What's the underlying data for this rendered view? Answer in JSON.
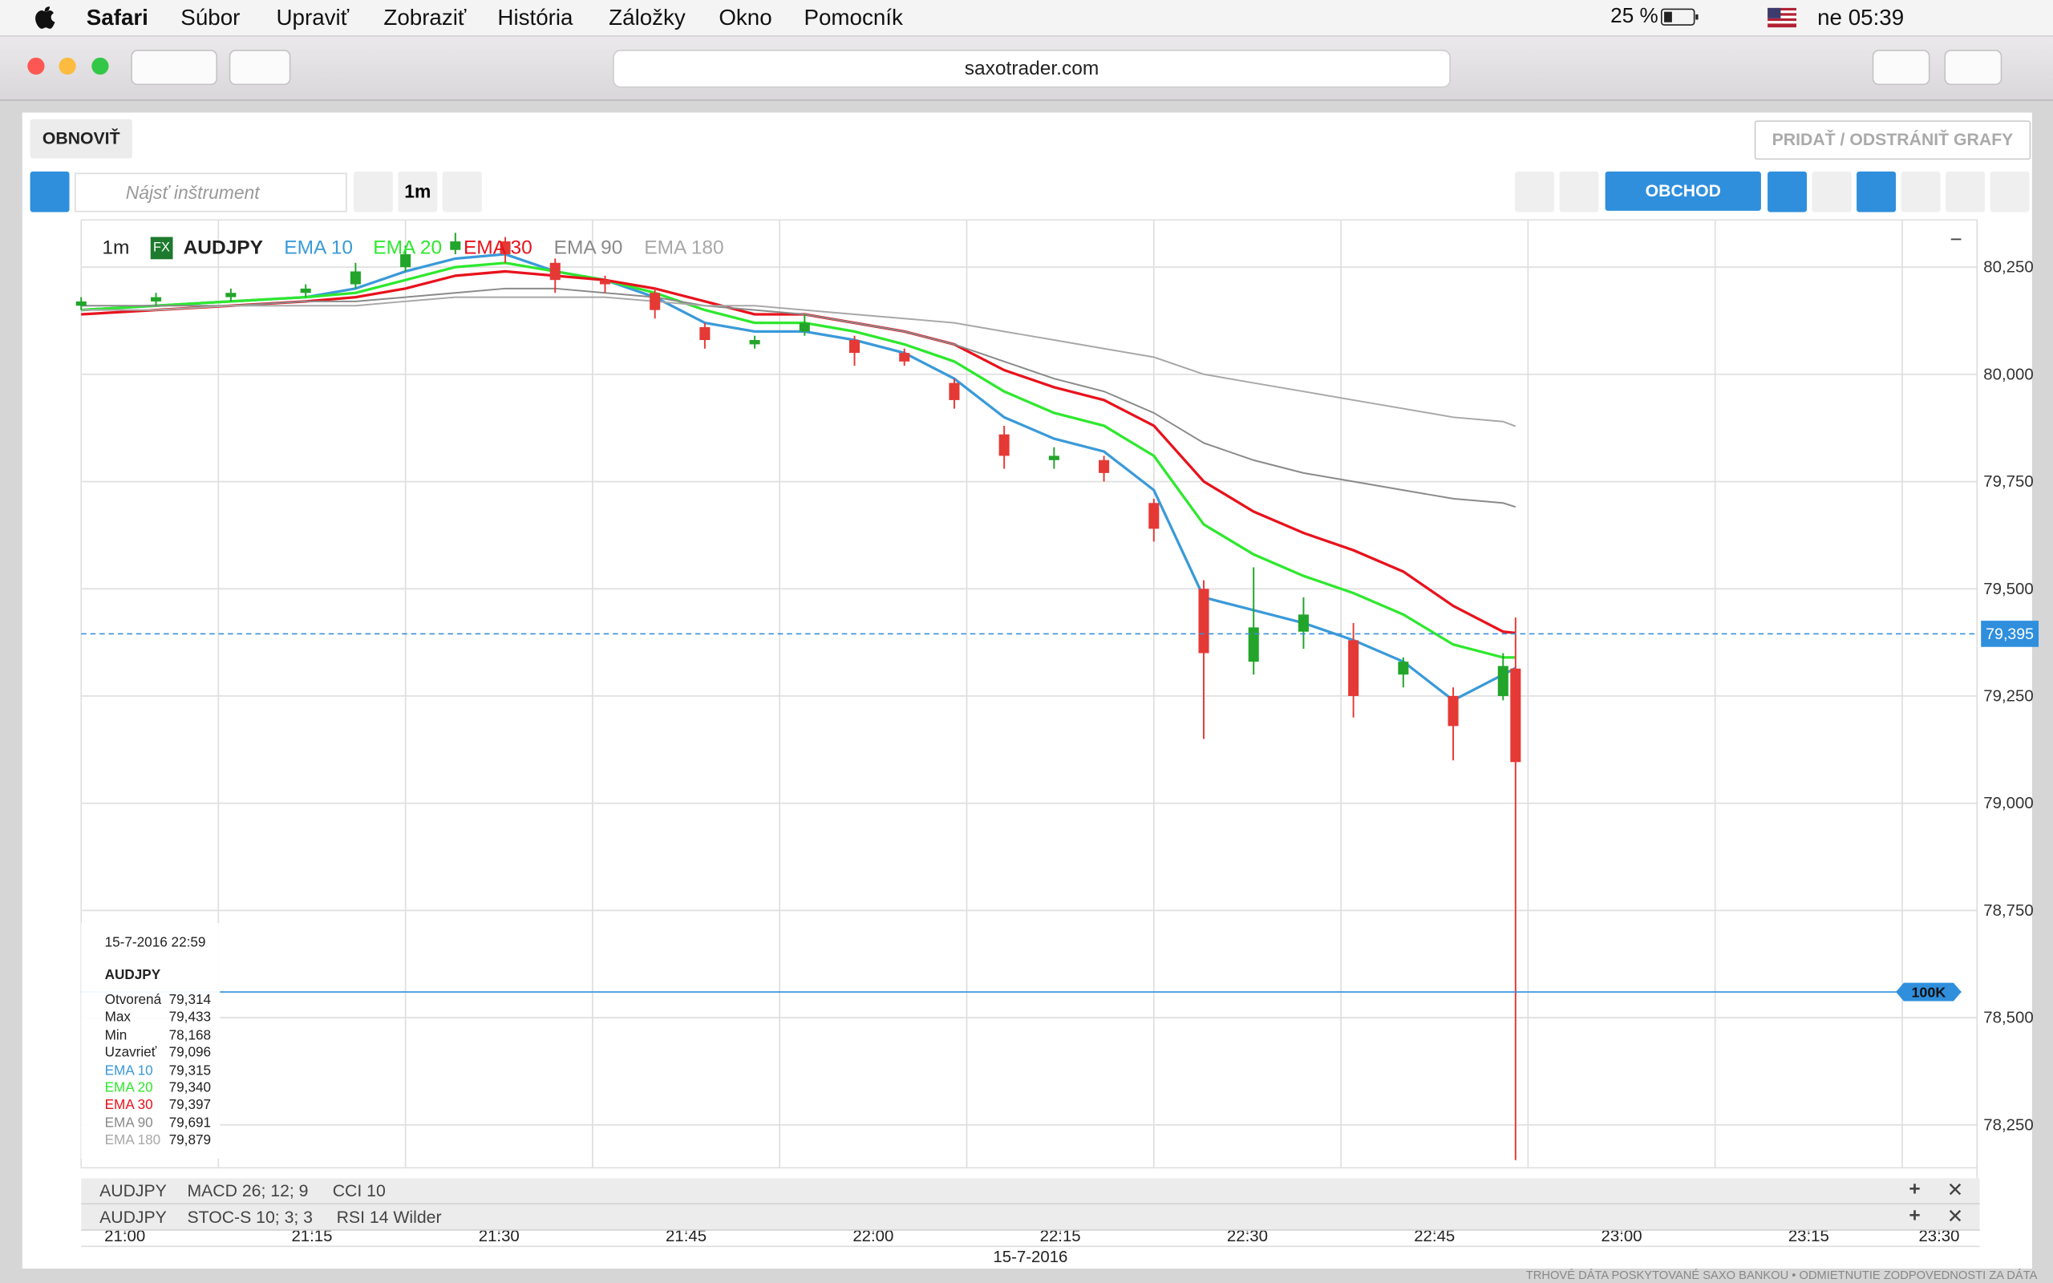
{
  "menubar": {
    "app": "Safari",
    "items": [
      "Súbor",
      "Upraviť",
      "Zobraziť",
      "História",
      "Záložky",
      "Okno",
      "Pomocník"
    ],
    "battery": "25 %",
    "clock": "ne 05:39"
  },
  "browser": {
    "url": "saxotrader.com"
  },
  "toolbar": {
    "refresh": "OBNOVIŤ",
    "add_remove": "PRIDAŤ / ODSTRÁNIŤ GRAFY",
    "search_placeholder": "Nájsť inštrument",
    "interval": "1m",
    "trade": "OBCHOD"
  },
  "chart_data": {
    "type": "candlestick",
    "interval": "1m",
    "badge": "FX",
    "instrument": "AUDJPY",
    "x": [
      "21:04",
      "21:10",
      "21:16",
      "21:22",
      "21:26",
      "21:30",
      "21:34",
      "21:38",
      "21:42",
      "21:46",
      "21:50",
      "21:54",
      "21:58",
      "22:02",
      "22:06",
      "22:10",
      "22:14",
      "22:18",
      "22:22",
      "22:26",
      "22:30",
      "22:34",
      "22:38",
      "22:42",
      "22:46",
      "22:50",
      "22:54",
      "22:58",
      "22:59"
    ],
    "open": [
      80.16,
      80.17,
      80.18,
      80.19,
      80.21,
      80.25,
      80.29,
      80.31,
      80.26,
      80.22,
      80.19,
      80.11,
      80.07,
      80.1,
      80.08,
      80.05,
      79.98,
      79.86,
      79.8,
      79.8,
      79.7,
      79.5,
      79.33,
      79.4,
      79.38,
      79.3,
      79.25,
      79.25,
      79.314
    ],
    "high": [
      80.18,
      80.19,
      80.2,
      80.21,
      80.26,
      80.3,
      80.33,
      80.32,
      80.27,
      80.23,
      80.2,
      80.12,
      80.09,
      80.14,
      80.09,
      80.06,
      79.99,
      79.88,
      79.83,
      79.81,
      79.71,
      79.52,
      79.55,
      79.48,
      79.42,
      79.34,
      79.27,
      79.35,
      79.433
    ],
    "low": [
      80.15,
      80.16,
      80.17,
      80.18,
      80.2,
      80.24,
      80.28,
      80.26,
      80.19,
      80.19,
      80.13,
      80.06,
      80.06,
      80.09,
      80.02,
      80.02,
      79.92,
      79.78,
      79.78,
      79.75,
      79.61,
      79.15,
      79.3,
      79.36,
      79.2,
      79.27,
      79.1,
      79.24,
      78.168
    ],
    "close": [
      80.17,
      80.18,
      80.19,
      80.2,
      80.24,
      80.28,
      80.31,
      80.28,
      80.22,
      80.21,
      80.15,
      80.08,
      80.08,
      80.12,
      80.05,
      80.03,
      79.94,
      79.81,
      79.81,
      79.77,
      79.64,
      79.35,
      79.41,
      79.44,
      79.25,
      79.33,
      79.18,
      79.32,
      79.096
    ],
    "up_color": "#22a52a",
    "down_color": "#e53935",
    "series": [
      {
        "name": "EMA 10",
        "color": "#3a9ad9",
        "values": [
          80.15,
          80.16,
          80.17,
          80.18,
          80.2,
          80.24,
          80.27,
          80.28,
          80.24,
          80.22,
          80.18,
          80.12,
          80.1,
          80.1,
          80.08,
          80.05,
          79.99,
          79.9,
          79.85,
          79.82,
          79.73,
          79.48,
          79.45,
          79.42,
          79.38,
          79.33,
          79.24,
          79.3,
          79.315
        ]
      },
      {
        "name": "EMA 20",
        "color": "#2ee82e",
        "values": [
          80.15,
          80.16,
          80.17,
          80.18,
          80.19,
          80.22,
          80.25,
          80.26,
          80.24,
          80.22,
          80.19,
          80.15,
          80.12,
          80.12,
          80.1,
          80.07,
          80.03,
          79.96,
          79.91,
          79.88,
          79.81,
          79.65,
          79.58,
          79.53,
          79.49,
          79.44,
          79.37,
          79.34,
          79.34
        ]
      },
      {
        "name": "EMA 30",
        "color": "#e8121c",
        "values": [
          80.14,
          80.15,
          80.16,
          80.17,
          80.18,
          80.2,
          80.23,
          80.24,
          80.23,
          80.22,
          80.2,
          80.17,
          80.14,
          80.14,
          80.12,
          80.1,
          80.07,
          80.01,
          79.97,
          79.94,
          79.88,
          79.75,
          79.68,
          79.63,
          79.59,
          79.54,
          79.46,
          79.4,
          79.397
        ]
      },
      {
        "name": "EMA 90",
        "color": "#8a8a8a",
        "values": [
          80.16,
          80.16,
          80.16,
          80.17,
          80.17,
          80.18,
          80.19,
          80.2,
          80.2,
          80.19,
          80.18,
          80.16,
          80.15,
          80.14,
          80.12,
          80.1,
          80.07,
          80.03,
          79.99,
          79.96,
          79.91,
          79.84,
          79.8,
          79.77,
          79.75,
          79.73,
          79.71,
          79.7,
          79.691
        ]
      },
      {
        "name": "EMA 180",
        "color": "#a8a8a8",
        "values": [
          80.15,
          80.15,
          80.16,
          80.16,
          80.16,
          80.17,
          80.18,
          80.18,
          80.18,
          80.18,
          80.17,
          80.16,
          80.16,
          80.15,
          80.14,
          80.13,
          80.12,
          80.1,
          80.08,
          80.06,
          80.04,
          80.0,
          79.98,
          79.96,
          79.94,
          79.92,
          79.9,
          79.89,
          79.879
        ]
      }
    ],
    "xlim": [
      "21:04",
      "23:36"
    ],
    "xticks": [
      "21:00",
      "21:15",
      "21:30",
      "21:45",
      "22:00",
      "22:15",
      "22:30",
      "22:45",
      "23:00",
      "23:15",
      "23:30"
    ],
    "date_label": "15-7-2016",
    "ylim": [
      78.15,
      80.36
    ],
    "yticks": [
      {
        "value": 78.25,
        "label": "78,250"
      },
      {
        "value": 78.5,
        "label": "78,500"
      },
      {
        "value": 78.75,
        "label": "78,750"
      },
      {
        "value": 79,
        "label": "79,000"
      },
      {
        "value": 79.25,
        "label": "79,250"
      },
      {
        "value": 79.5,
        "label": "79,500"
      },
      {
        "value": 79.75,
        "label": "79,750"
      },
      {
        "value": 80,
        "label": "80,000"
      },
      {
        "value": 80.25,
        "label": "80,250"
      }
    ],
    "grid": true,
    "current_price": {
      "value": 79.395,
      "label": "79,395"
    },
    "order_line": {
      "value": 78.56,
      "label": "100K"
    }
  },
  "info_panel": {
    "datetime": "15-7-2016 22:59",
    "instrument": "AUDJPY",
    "rows": [
      {
        "label": "Otvorená",
        "value": "79,314",
        "color": "#222222"
      },
      {
        "label": "Max",
        "value": "79,433",
        "color": "#222222"
      },
      {
        "label": "Min",
        "value": "78,168",
        "color": "#222222"
      },
      {
        "label": "Uzavrieť",
        "value": "79,096",
        "color": "#222222"
      },
      {
        "label": "EMA 10",
        "value": "79,315",
        "color": "#3a9ad9"
      },
      {
        "label": "EMA 20",
        "value": "79,340",
        "color": "#2ee82e"
      },
      {
        "label": "EMA 30",
        "value": "79,397",
        "color": "#e8121c"
      },
      {
        "label": "EMA 90",
        "value": "79,691",
        "color": "#8a8a8a"
      },
      {
        "label": "EMA 180",
        "value": "79,879",
        "color": "#a8a8a8"
      }
    ]
  },
  "subpanels": [
    {
      "instrument": "AUDJPY",
      "indicators": [
        "MACD 26; 12; 9",
        "CCI 10"
      ]
    },
    {
      "instrument": "AUDJPY",
      "indicators": [
        "STOC-S 10; 3; 3",
        "RSI 14 Wilder"
      ]
    }
  ],
  "footer": "TRHOVÉ DÁTA POSKYTOVANÉ SAXO BANKOU • ODMIETNUTIE ZODPOVEDNOSTI ZA DÁTA"
}
